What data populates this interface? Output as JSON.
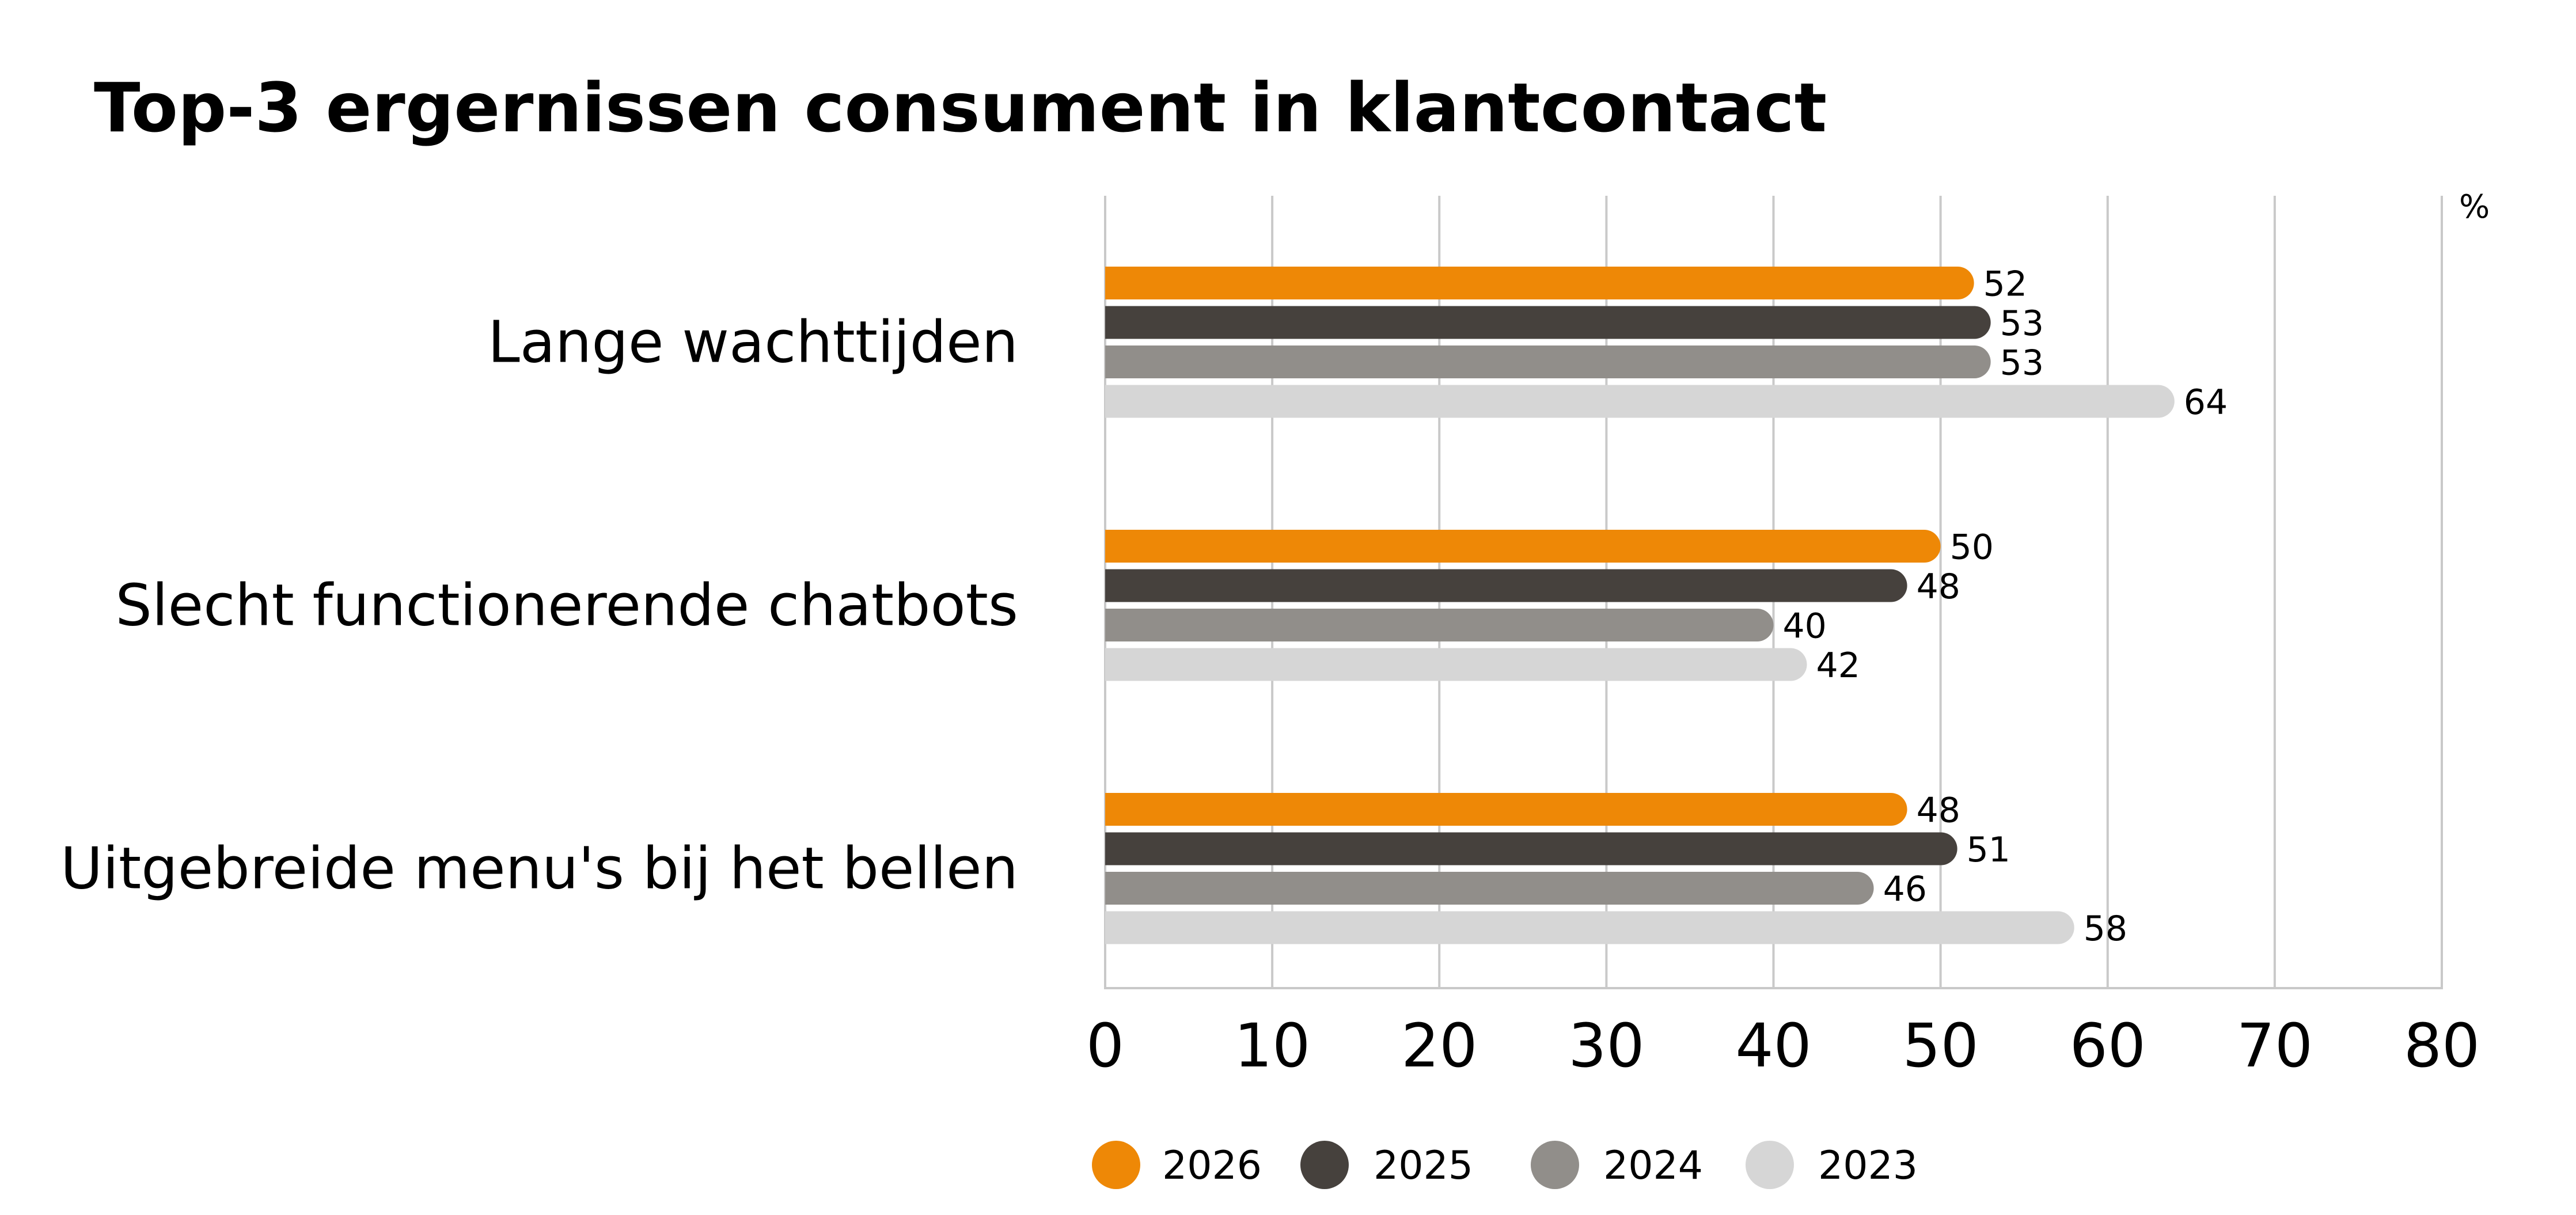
{
  "chart_data": {
    "type": "bar",
    "orientation": "horizontal",
    "title": "Top-3 ergernissen consument in klantcontact",
    "unit_label": "%",
    "categories": [
      "Lange wachttijden",
      "Slecht functionerende chatbots",
      "Uitgebreide menu's bij het bellen"
    ],
    "series": [
      {
        "name": "2026",
        "color": "#ee8806",
        "values": [
          52,
          50,
          48
        ]
      },
      {
        "name": "2025",
        "color": "#46413d",
        "values": [
          53,
          48,
          51
        ]
      },
      {
        "name": "2024",
        "color": "#918e8a",
        "values": [
          53,
          40,
          46
        ]
      },
      {
        "name": "2023",
        "color": "#d6d6d6",
        "values": [
          64,
          42,
          58
        ]
      }
    ],
    "xlim": [
      0,
      80
    ],
    "xticks": [
      "0",
      "10",
      "20",
      "30",
      "40",
      "50",
      "60",
      "70",
      "80"
    ],
    "grid": true,
    "legend": "bottom-center"
  }
}
